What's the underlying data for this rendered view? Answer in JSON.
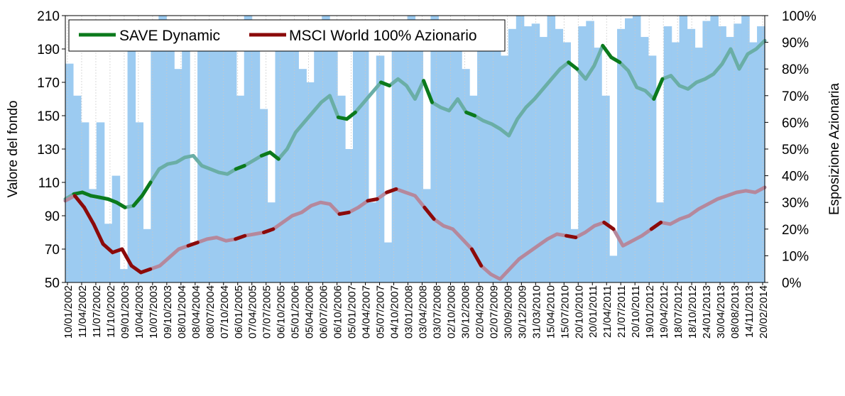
{
  "chart_data": {
    "type": "line",
    "ylabel": "Valore del fondo",
    "y2label": "Esposizione Azionaria",
    "ylim": [
      50,
      210
    ],
    "y2lim": [
      0,
      100
    ],
    "yticks": [
      "50",
      "70",
      "90",
      "110",
      "130",
      "150",
      "170",
      "190",
      "210"
    ],
    "y2ticks": [
      "0%",
      "10%",
      "20%",
      "30%",
      "40%",
      "50%",
      "60%",
      "70%",
      "80%",
      "90%",
      "100%"
    ],
    "xtick_labels": [
      "10/01/2002",
      "11/04/2002",
      "11/07/2002",
      "11/10/2002",
      "09/01/2003",
      "10/04/2003",
      "10/07/2003",
      "09/10/2003",
      "08/01/2004",
      "08/04/2004",
      "08/07/2004",
      "07/10/2004",
      "06/01/2005",
      "07/04/2005",
      "07/07/2005",
      "06/10/2005",
      "05/01/2006",
      "05/04/2006",
      "06/07/2006",
      "06/10/2006",
      "05/01/2007",
      "04/04/2007",
      "05/07/2007",
      "04/10/2007",
      "03/01/2008",
      "03/04/2008",
      "03/07/2008",
      "02/10/2008",
      "30/12/2008",
      "02/04/2009",
      "02/07/2009",
      "30/09/2009",
      "30/12/2009",
      "31/03/2010",
      "15/04/2010",
      "15/07/2010",
      "20/10/2010",
      "20/01/2011",
      "21/04/2011",
      "21/07/2011",
      "20/10/2011",
      "19/01/2012",
      "19/04/2012",
      "18/07/2012",
      "18/10/2012",
      "24/01/2013",
      "30/04/2013",
      "08/08/2013",
      "14/11/2013",
      "20/02/2014"
    ],
    "legend_position": "top-left",
    "grid": "vertical",
    "series": [
      {
        "name": "SAVE Dynamic",
        "color": "#0b7a1c",
        "faded_color": "#6aaea6",
        "values": [
          100,
          103,
          104,
          102,
          101,
          100,
          98,
          95,
          96,
          102,
          110,
          118,
          121,
          122,
          125,
          126,
          120,
          118,
          116,
          115,
          118,
          120,
          123,
          126,
          128,
          124,
          130,
          140,
          146,
          152,
          158,
          162,
          149,
          148,
          152,
          158,
          164,
          170,
          168,
          172,
          168,
          160,
          171,
          158,
          155,
          153,
          160,
          152,
          150,
          147,
          145,
          142,
          138,
          148,
          155,
          160,
          166,
          172,
          178,
          182,
          178,
          172,
          180,
          192,
          185,
          182,
          177,
          167,
          165,
          160,
          172,
          174,
          168,
          166,
          170,
          172,
          175,
          181,
          190,
          178,
          187,
          190,
          195
        ]
      },
      {
        "name": "MSCI World 100% Azionario",
        "color": "#8b0a0a",
        "faded_color": "#b5889c",
        "values": [
          99,
          102,
          95,
          85,
          73,
          68,
          70,
          60,
          56,
          58,
          60,
          65,
          70,
          72,
          74,
          76,
          77,
          75,
          76,
          78,
          79,
          80,
          82,
          86,
          90,
          92,
          96,
          98,
          97,
          91,
          92,
          95,
          99,
          100,
          104,
          106,
          104,
          102,
          95,
          88,
          84,
          82,
          76,
          70,
          60,
          55,
          52,
          58,
          64,
          68,
          72,
          76,
          79,
          78,
          77,
          80,
          84,
          86,
          82,
          72,
          75,
          78,
          82,
          86,
          85,
          88,
          90,
          94,
          97,
          100,
          102,
          104,
          105,
          104,
          107
        ]
      }
    ],
    "exposure": {
      "name": "Esposizione Azionaria",
      "color": "#9ccbf1",
      "values_pct": [
        82,
        70,
        60,
        35,
        60,
        22,
        40,
        5,
        88,
        60,
        20,
        96,
        100,
        95,
        80,
        98,
        15,
        90,
        96,
        92,
        88,
        95,
        70,
        100,
        97,
        65,
        30,
        96,
        92,
        88,
        80,
        75,
        96,
        100,
        92,
        70,
        50,
        98,
        88,
        30,
        85,
        15,
        97,
        96,
        100,
        90,
        35,
        100,
        94,
        92,
        88,
        80,
        70,
        96,
        98,
        92,
        85,
        95,
        100,
        96,
        97,
        92,
        100,
        95,
        90,
        20,
        96,
        98,
        88,
        70,
        10,
        95,
        99,
        100,
        92,
        85,
        30,
        96,
        90,
        100,
        95,
        88,
        98,
        100,
        96,
        92,
        97,
        100,
        90,
        96
      ]
    }
  }
}
